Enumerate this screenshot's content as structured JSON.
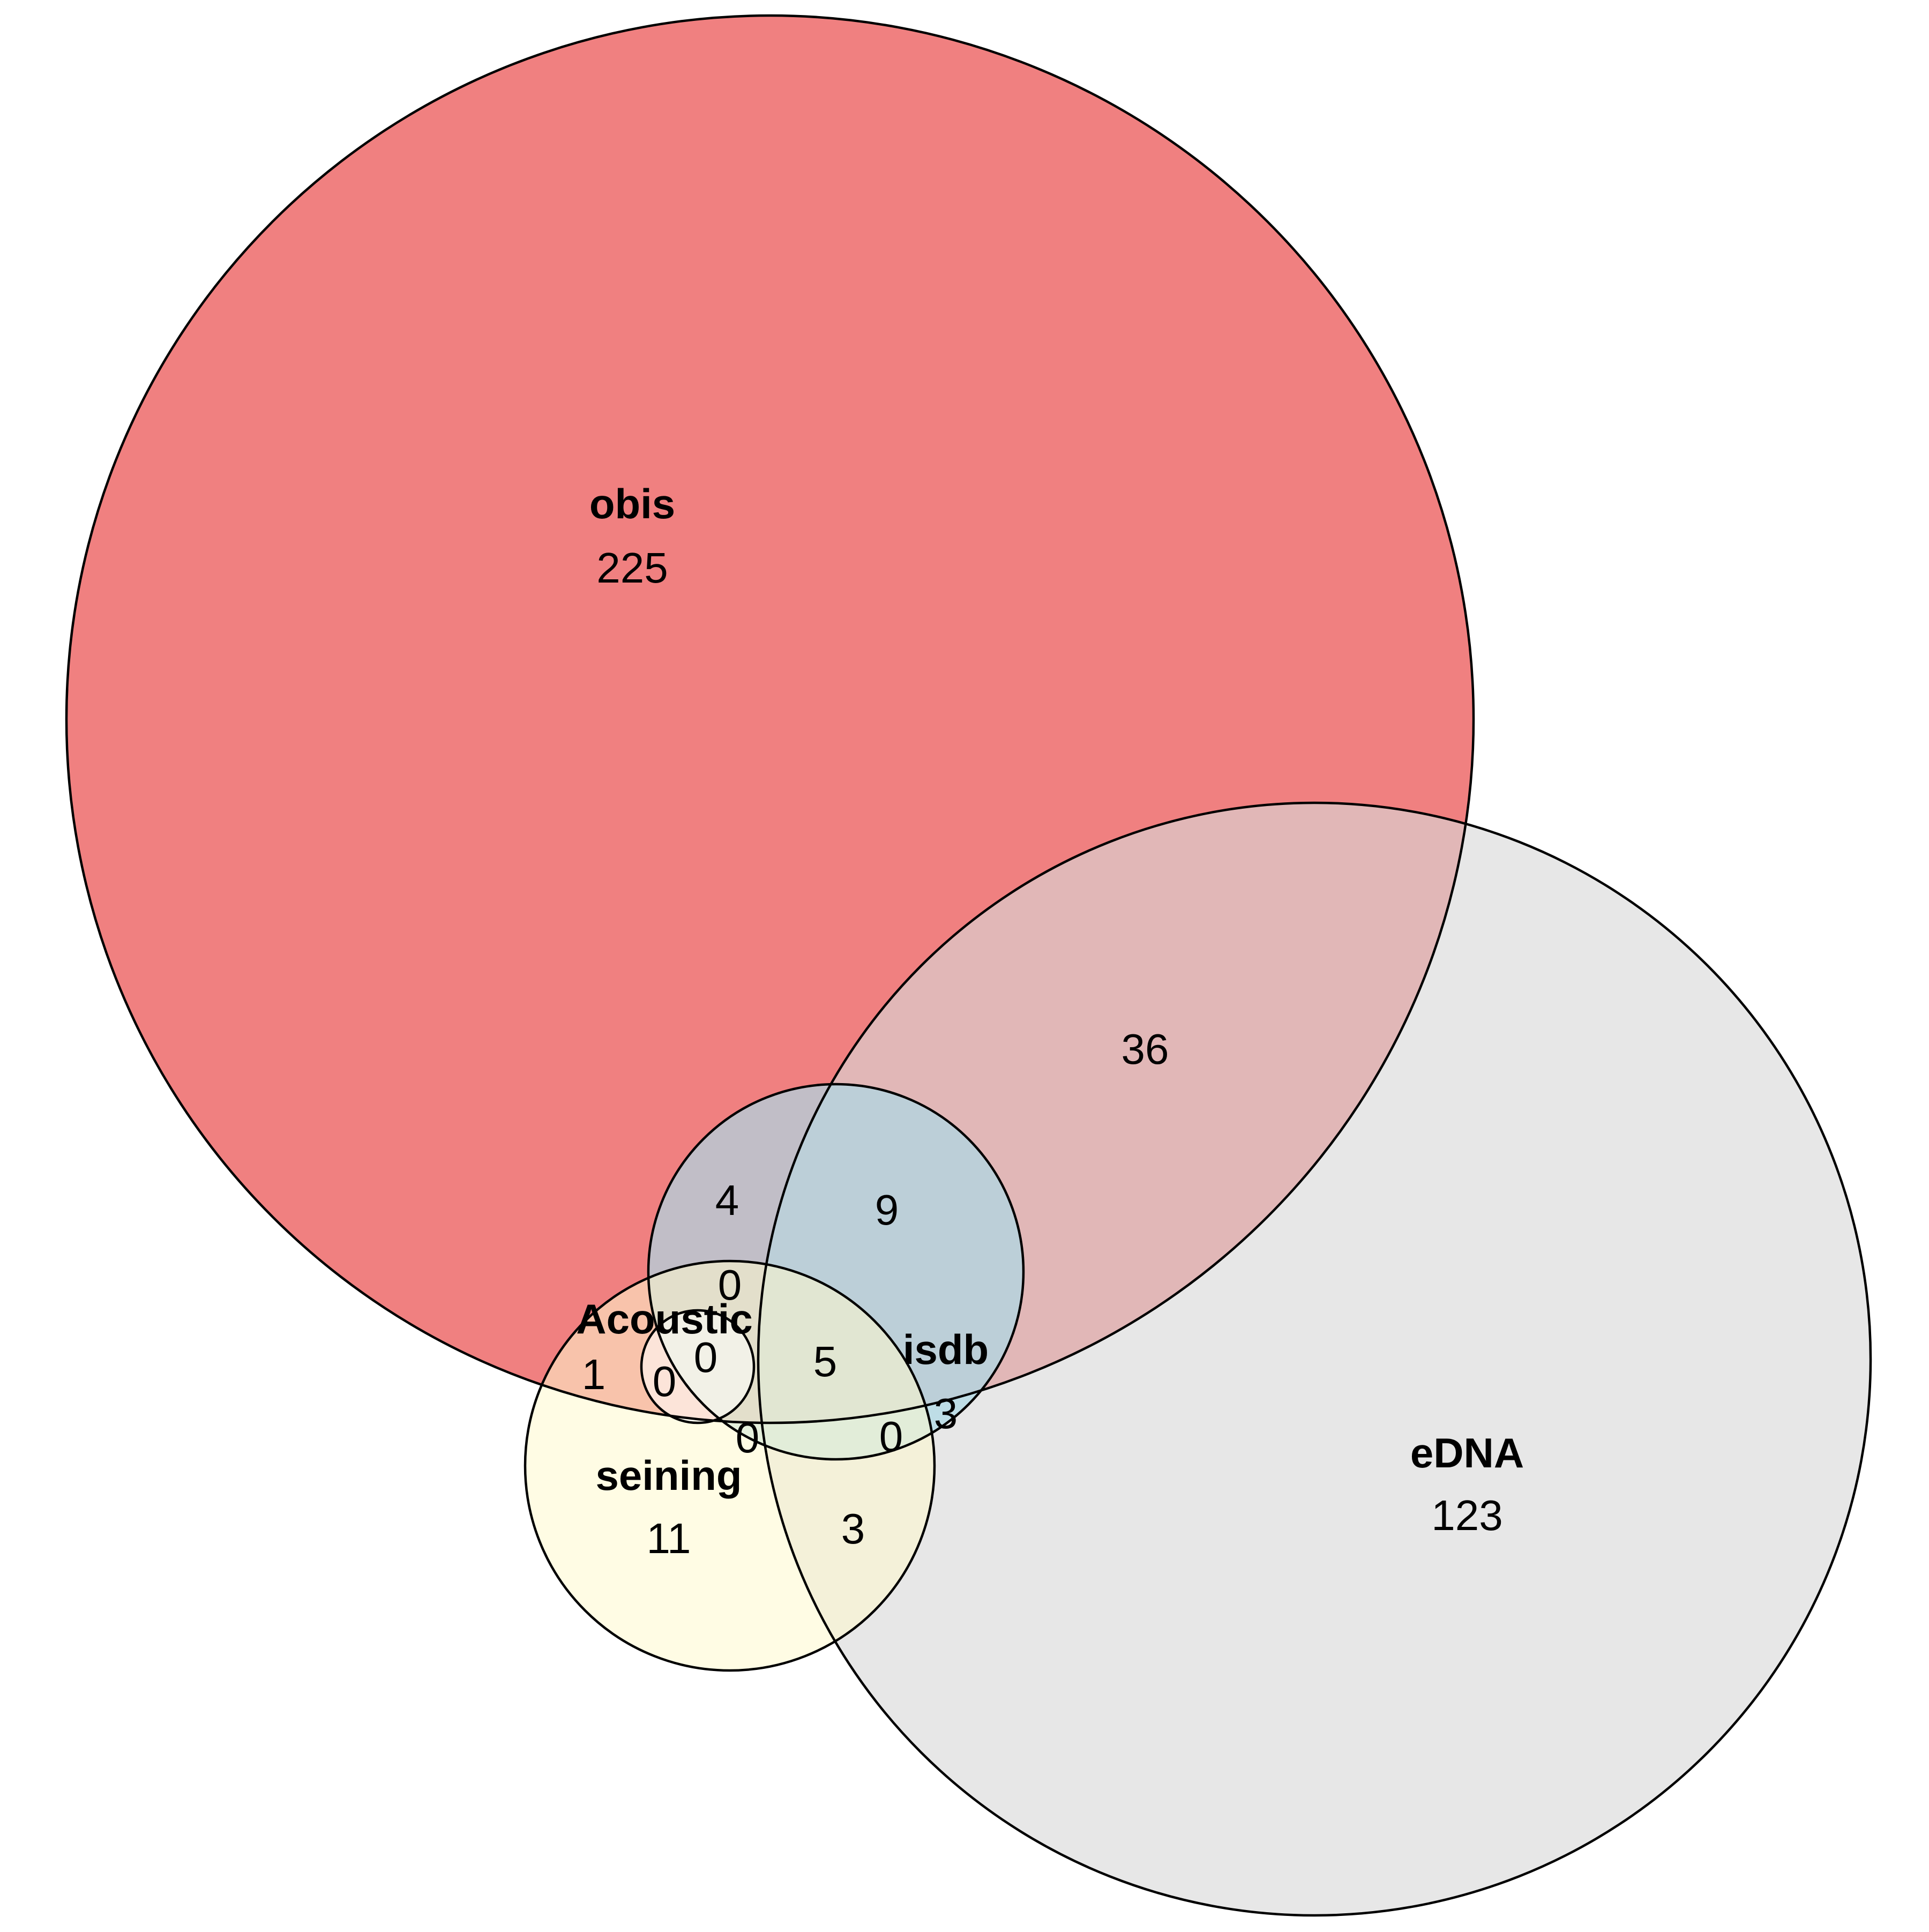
{
  "venn": {
    "sets": [
      {
        "id": "obis",
        "label": "obis",
        "count": "225",
        "color": "#F08080"
      },
      {
        "id": "edna",
        "label": "eDNA",
        "count": "123",
        "color": "#D8D8D8"
      },
      {
        "id": "isdb",
        "label": "isdb",
        "count": "",
        "color": "#ADD8E6"
      },
      {
        "id": "seining",
        "label": "seining",
        "count": "11",
        "color": "#FFFACD"
      },
      {
        "id": "acoustic",
        "label": "Acoustic",
        "count": "",
        "color": "#FFFFFF"
      }
    ],
    "regions": [
      {
        "id": "obis-edna",
        "sets": [
          "obis",
          "eDNA"
        ],
        "count": "36"
      },
      {
        "id": "obis-isdb",
        "sets": [
          "obis",
          "isdb"
        ],
        "count": "4"
      },
      {
        "id": "obis-edna-isdb",
        "sets": [
          "obis",
          "eDNA",
          "isdb"
        ],
        "count": "9"
      },
      {
        "id": "obis-isdb-seining",
        "sets": [
          "obis",
          "isdb",
          "seining"
        ],
        "count": "0"
      },
      {
        "id": "obis-seining",
        "sets": [
          "obis",
          "seining"
        ],
        "count": "1"
      },
      {
        "id": "obis-seining-acoustic",
        "sets": [
          "obis",
          "seining",
          "Acoustic"
        ],
        "count": "0"
      },
      {
        "id": "obis-isdb-seining-acoustic",
        "sets": [
          "obis",
          "isdb",
          "seining",
          "Acoustic"
        ],
        "count": "0"
      },
      {
        "id": "obis-edna-isdb-seining",
        "sets": [
          "obis",
          "eDNA",
          "isdb",
          "seining"
        ],
        "count": "5"
      },
      {
        "id": "isdb-seining",
        "sets": [
          "isdb",
          "seining"
        ],
        "count": "0"
      },
      {
        "id": "edna-isdb-seining",
        "sets": [
          "eDNA",
          "isdb",
          "seining"
        ],
        "count": "0"
      },
      {
        "id": "edna-isdb",
        "sets": [
          "eDNA",
          "isdb"
        ],
        "count": "3"
      },
      {
        "id": "edna-seining",
        "sets": [
          "eDNA",
          "seining"
        ],
        "count": "3"
      }
    ]
  }
}
